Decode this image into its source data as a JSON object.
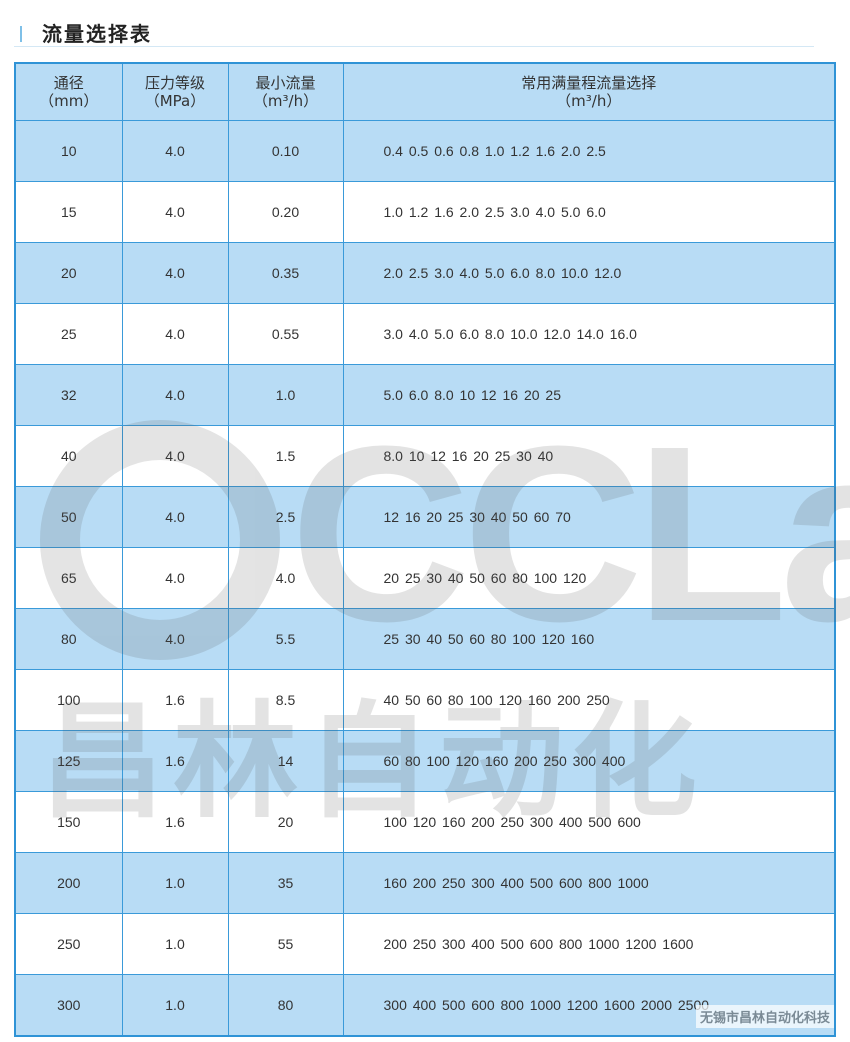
{
  "title": "流量选择表",
  "colors": {
    "row_blue": "#b8dcf5",
    "border": "#3a9ad9"
  },
  "headers": [
    {
      "label": "通径",
      "unit": "（mm）"
    },
    {
      "label": "压力等级",
      "unit": "（MPa）"
    },
    {
      "label": "最小流量",
      "unit": "（m³/h）"
    },
    {
      "label": "常用满量程流量选择",
      "unit": "（m³/h）"
    }
  ],
  "rows": [
    {
      "dn": "10",
      "pressure": "4.0",
      "min": "0.10",
      "flows": "0.4 0.5 0.6 0.8 1.0 1.2 1.6 2.0 2.5"
    },
    {
      "dn": "15",
      "pressure": "4.0",
      "min": "0.20",
      "flows": "1.0 1.2 1.6 2.0 2.5 3.0 4.0 5.0 6.0"
    },
    {
      "dn": "20",
      "pressure": "4.0",
      "min": "0.35",
      "flows": "2.0 2.5 3.0 4.0 5.0 6.0 8.0 10.0 12.0"
    },
    {
      "dn": "25",
      "pressure": "4.0",
      "min": "0.55",
      "flows": "3.0 4.0 5.0 6.0 8.0 10.0 12.0 14.0 16.0"
    },
    {
      "dn": "32",
      "pressure": "4.0",
      "min": "1.0",
      "flows": "5.0 6.0 8.0 10 12 16 20 25"
    },
    {
      "dn": "40",
      "pressure": "4.0",
      "min": "1.5",
      "flows": "8.0 10 12 16 20 25 30 40"
    },
    {
      "dn": "50",
      "pressure": "4.0",
      "min": "2.5",
      "flows": "12 16 20 25 30 40 50 60 70"
    },
    {
      "dn": "65",
      "pressure": "4.0",
      "min": "4.0",
      "flows": "20 25 30 40 50 60 80 100 120"
    },
    {
      "dn": "80",
      "pressure": "4.0",
      "min": "5.5",
      "flows": "25 30 40 50 60 80 100 120 160"
    },
    {
      "dn": "100",
      "pressure": "1.6",
      "min": "8.5",
      "flows": "40 50 60 80 100 120 160 200 250"
    },
    {
      "dn": "125",
      "pressure": "1.6",
      "min": "14",
      "flows": "60 80 100 120 160 200 250 300 400"
    },
    {
      "dn": "150",
      "pressure": "1.6",
      "min": "20",
      "flows": "100 120 160 200 250 300 400 500 600"
    },
    {
      "dn": "200",
      "pressure": "1.0",
      "min": "35",
      "flows": "160 200 250 300 400 500 600 800 1000"
    },
    {
      "dn": "250",
      "pressure": "1.0",
      "min": "55",
      "flows": "200 250 300 400 500 600 800 1000 1200 1600"
    },
    {
      "dn": "300",
      "pressure": "1.0",
      "min": "80",
      "flows": "300 400 500 600 800 1000 1200 1600 2000 2500"
    }
  ],
  "watermark": {
    "en": "CCLair",
    "cn": "昌林自动化"
  },
  "footer": "无锡市昌林自动化科技"
}
